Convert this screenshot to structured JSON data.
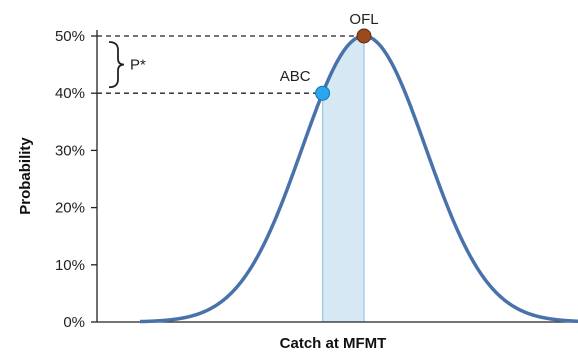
{
  "chart_data": {
    "type": "line",
    "xlabel": "Catch at MFMT",
    "ylabel": "Probability",
    "ylim": [
      0,
      0.5
    ],
    "yticks": [
      {
        "value": 0.0,
        "label": "0%"
      },
      {
        "value": 0.1,
        "label": "10%"
      },
      {
        "value": 0.2,
        "label": "20%"
      },
      {
        "value": 0.3,
        "label": "30%"
      },
      {
        "value": 0.4,
        "label": "40%"
      },
      {
        "value": 0.5,
        "label": "50%"
      }
    ],
    "xticks_shown": false,
    "curve": {
      "shape": "normal cumulative-style bell curve",
      "peak_probability": 0.5,
      "line_color": "#4a72aa"
    },
    "points": [
      {
        "label": "ABC",
        "probability": 0.4,
        "color": "#2aa6ee"
      },
      {
        "label": "OFL",
        "probability": 0.5,
        "color": "#9b4a1c"
      }
    ],
    "bracket": {
      "label": "P*",
      "from": 0.4,
      "to": 0.5
    },
    "shaded_region": {
      "between": [
        "ABC",
        "OFL"
      ],
      "color": "#d5e8f3"
    }
  }
}
